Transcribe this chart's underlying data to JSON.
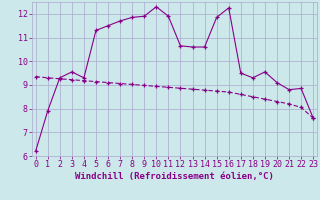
{
  "xlabel": "Windchill (Refroidissement éolien,°C)",
  "bg_color": "#cce8ea",
  "grid_color": "#aaaacc",
  "line_color": "#880088",
  "line1_x": [
    0,
    1,
    2,
    3,
    4,
    5,
    6,
    7,
    8,
    9,
    10,
    11,
    12,
    13,
    14,
    15,
    16,
    17,
    18,
    19,
    20,
    21,
    22,
    23
  ],
  "line1_y": [
    6.2,
    7.9,
    9.3,
    9.55,
    9.3,
    11.3,
    11.5,
    11.7,
    11.85,
    11.9,
    12.3,
    11.9,
    10.65,
    10.6,
    10.6,
    11.85,
    12.25,
    9.5,
    9.3,
    9.55,
    9.1,
    8.8,
    8.85,
    7.6
  ],
  "line2_x": [
    0,
    1,
    2,
    3,
    4,
    5,
    6,
    7,
    8,
    9,
    10,
    11,
    12,
    13,
    14,
    15,
    16,
    17,
    18,
    19,
    20,
    21,
    22,
    23
  ],
  "line2_y": [
    9.35,
    9.3,
    9.26,
    9.22,
    9.18,
    9.14,
    9.1,
    9.06,
    9.02,
    8.98,
    8.94,
    8.9,
    8.86,
    8.82,
    8.78,
    8.74,
    8.7,
    8.6,
    8.5,
    8.4,
    8.3,
    8.2,
    8.05,
    7.6
  ],
  "ylim": [
    6.0,
    12.5
  ],
  "xlim": [
    -0.3,
    23.3
  ],
  "yticks": [
    6,
    7,
    8,
    9,
    10,
    11,
    12
  ],
  "xticks": [
    0,
    1,
    2,
    3,
    4,
    5,
    6,
    7,
    8,
    9,
    10,
    11,
    12,
    13,
    14,
    15,
    16,
    17,
    18,
    19,
    20,
    21,
    22,
    23
  ],
  "tick_fontsize": 6.0,
  "xlabel_fontsize": 6.5
}
